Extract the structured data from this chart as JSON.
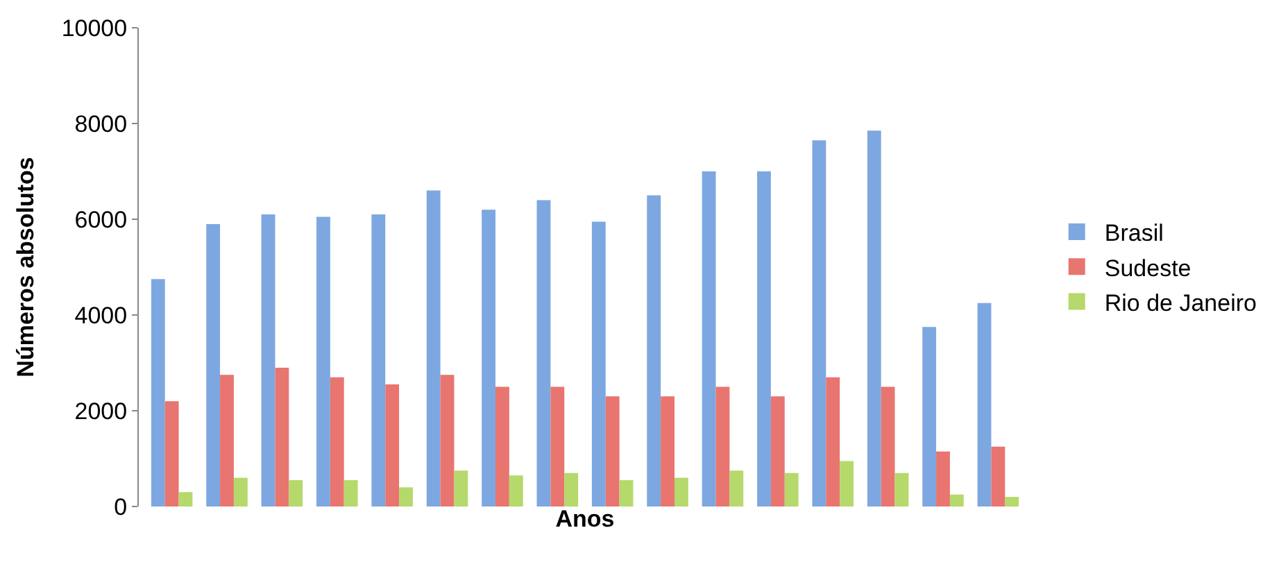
{
  "chart_data": {
    "type": "bar",
    "xlabel": "Anos",
    "ylabel": "Números absolutos",
    "categories": [
      null,
      null,
      null,
      null,
      null,
      null,
      null,
      null,
      null,
      null,
      null,
      null,
      null,
      null,
      null,
      null
    ],
    "series": [
      {
        "name": "Brasil",
        "color": "#7da7e0",
        "values": [
          4750,
          5900,
          6100,
          6050,
          6100,
          6600,
          6200,
          6400,
          5950,
          6500,
          7000,
          7000,
          7650,
          7850,
          3750,
          4250
        ]
      },
      {
        "name": "Sudeste",
        "color": "#e8756f",
        "values": [
          2200,
          2750,
          2900,
          2700,
          2550,
          2750,
          2500,
          2500,
          2300,
          2300,
          2500,
          2300,
          2700,
          2500,
          1150,
          1250
        ]
      },
      {
        "name": "Rio de Janeiro",
        "color": "#b5d96a",
        "values": [
          300,
          600,
          550,
          550,
          400,
          750,
          650,
          700,
          550,
          600,
          750,
          700,
          950,
          700,
          250,
          200
        ]
      }
    ],
    "ylim": [
      0,
      10000
    ],
    "yticks": [
      0,
      2000,
      4000,
      6000,
      8000,
      10000
    ],
    "legend": "right",
    "tick_labels": "y"
  }
}
